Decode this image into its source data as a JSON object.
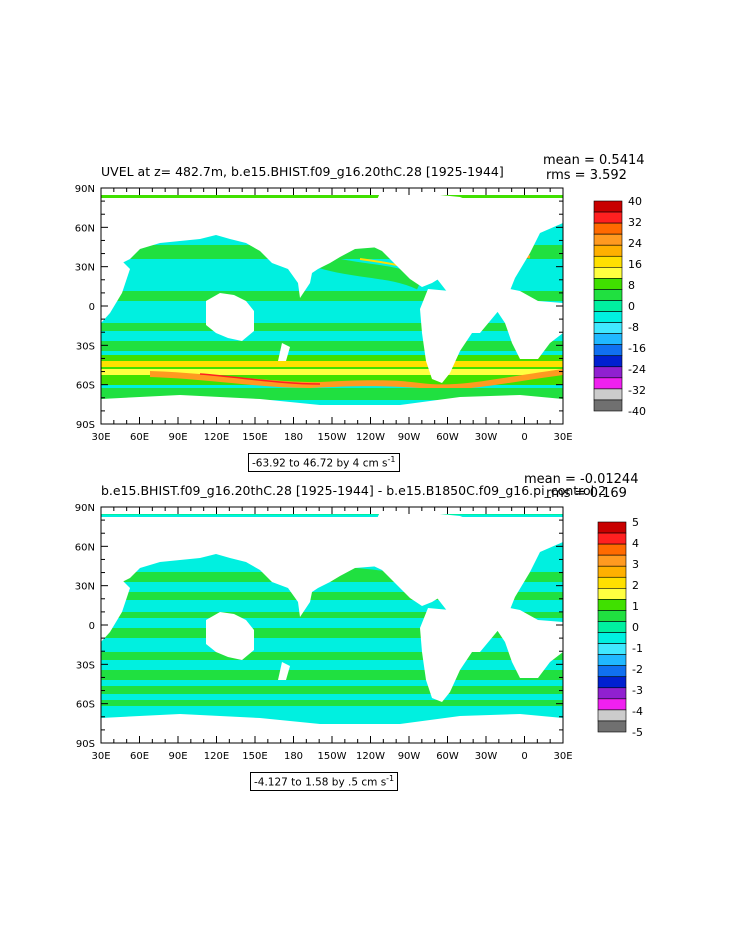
{
  "panels": [
    {
      "title": "UVEL at z= 482.7m, b.e15.BHIST.f09_g16.20thC.28 [1925-1944]",
      "mean_label": "mean = 0.5414",
      "rms_label": "rms = 3.592",
      "range_label": "-63.92 to 46.72 by 4 cm s",
      "range_sup": "-1",
      "lat_ticks": [
        "90N",
        "60N",
        "30N",
        "0",
        "30S",
        "60S",
        "90S"
      ],
      "lon_ticks": [
        "30E",
        "60E",
        "90E",
        "120E",
        "150E",
        "180",
        "150W",
        "120W",
        "90W",
        "60W",
        "30W",
        "0",
        "30E"
      ],
      "colorbar": {
        "labels": [
          "40",
          "32",
          "24",
          "16",
          "8",
          "0",
          "-8",
          "-16",
          "-24",
          "-32",
          "-40"
        ],
        "colors": [
          "#c80000",
          "#ff2020",
          "#ff6a00",
          "#ff9a20",
          "#ffb000",
          "#ffe000",
          "#ffff40",
          "#40e000",
          "#20e040",
          "#00f0a0",
          "#00f0e0",
          "#40e8ff",
          "#20b8ff",
          "#1070f0",
          "#0020d0",
          "#9020d0",
          "#f020f0",
          "#cccccc",
          "#707070"
        ]
      },
      "fill_color": "#00f0e0"
    },
    {
      "title": "b.e15.BHIST.f09_g16.20thC.28 [1925-1944] - b.e15.B1850C.f09_g16.pi_control.2",
      "mean_label": "mean = -0.01244",
      "rms_label": "rms = 0.169",
      "range_label": "-4.127 to 1.58 by .5 cm s",
      "range_sup": "-1",
      "lat_ticks": [
        "90N",
        "60N",
        "30N",
        "0",
        "30S",
        "60S",
        "90S"
      ],
      "lon_ticks": [
        "30E",
        "60E",
        "90E",
        "120E",
        "150E",
        "180",
        "150W",
        "120W",
        "90W",
        "60W",
        "30W",
        "0",
        "30E"
      ],
      "colorbar": {
        "labels": [
          "5",
          "4",
          "3",
          "2",
          "1",
          "0",
          "-1",
          "-2",
          "-3",
          "-4",
          "-5"
        ],
        "colors": [
          "#c80000",
          "#ff2020",
          "#ff6a00",
          "#ff9a20",
          "#ffb000",
          "#ffe000",
          "#ffff40",
          "#40e000",
          "#20e040",
          "#00f0a0",
          "#00f0e0",
          "#40e8ff",
          "#20b8ff",
          "#1070f0",
          "#0020d0",
          "#9020d0",
          "#f020f0",
          "#cccccc",
          "#707070"
        ]
      },
      "fill_color": "#00f0e0"
    }
  ]
}
